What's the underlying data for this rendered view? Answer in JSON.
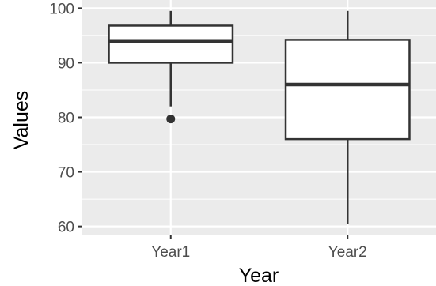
{
  "chart_data": {
    "type": "box",
    "xlabel": "Year",
    "ylabel": "Values",
    "ylim": [
      58.5,
      101.5
    ],
    "y_ticks": [
      60,
      70,
      80,
      90,
      100
    ],
    "grid": true,
    "categories": [
      "Year1",
      "Year2"
    ],
    "boxes": [
      {
        "category": "Year1",
        "whisker_low": 82,
        "q1": 90,
        "median": 94,
        "q3": 96.8,
        "whisker_high": 99.5,
        "outliers": [
          79.7
        ]
      },
      {
        "category": "Year2",
        "whisker_low": 60.5,
        "q1": 76,
        "median": 86,
        "q3": 94.2,
        "whisker_high": 99.5,
        "outliers": []
      }
    ],
    "colors": {
      "panel": "#ebebeb",
      "grid": "#ffffff",
      "box_fill": "#ffffff",
      "box_line": "#333333"
    }
  }
}
